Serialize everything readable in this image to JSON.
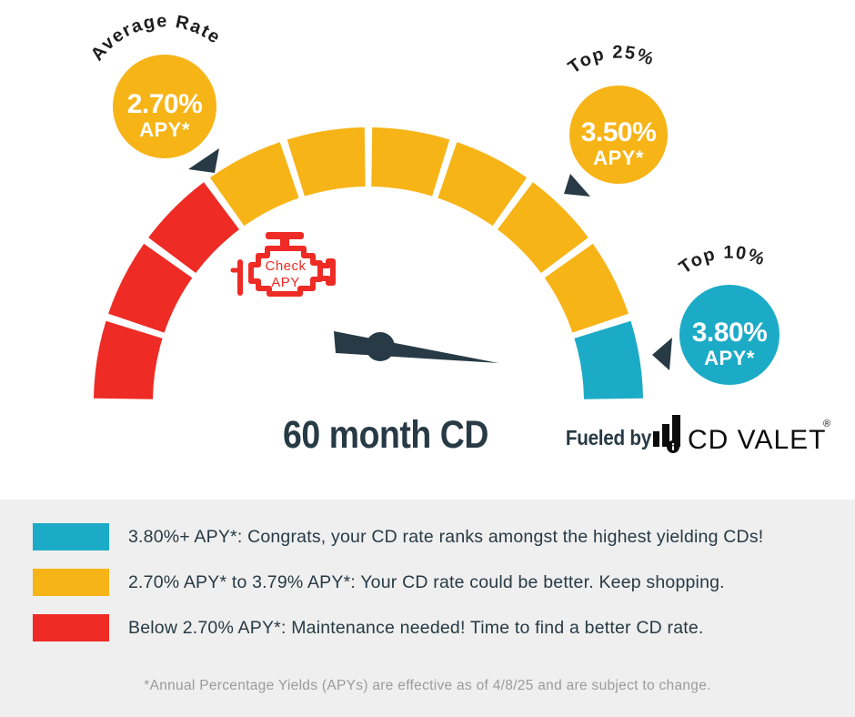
{
  "colors": {
    "red": "#EE2B25",
    "yellow": "#F7B417",
    "teal": "#1CABC6",
    "dark": "#273A45",
    "label_dark": "#1D1D1D",
    "logo_black": "#0C0C0C",
    "panel_bg": "#EFEFEF",
    "muted": "#9B9B9B",
    "white": "#FFFFFF"
  },
  "gauge": {
    "title": "60 month CD",
    "markers": [
      {
        "label": "Average Rate",
        "value": "2.70%",
        "unit": "APY*",
        "color": "yellow"
      },
      {
        "label": "Top 25%",
        "value": "3.50%",
        "unit": "APY*",
        "color": "yellow"
      },
      {
        "label": "Top 10%",
        "value": "3.80%",
        "unit": "APY*",
        "color": "teal"
      }
    ],
    "engine_badge": {
      "line1": "Check",
      "line2": "APY"
    }
  },
  "branding": {
    "fueled_by": "Fueled by",
    "brand": "CD VALET",
    "registered": "®"
  },
  "legend": {
    "rows": [
      {
        "color": "teal",
        "text": "3.80%+ APY*: Congrats, your CD rate ranks amongst the highest yielding CDs!"
      },
      {
        "color": "yellow",
        "text": "2.70% APY* to 3.79% APY*: Your CD rate could be better. Keep shopping."
      },
      {
        "color": "red",
        "text": "Below 2.70% APY*: Maintenance needed! Time to find a better CD rate."
      }
    ]
  },
  "footnote": "*Annual Percentage Yields (APYs) are effective as of 4/8/25 and are subject to change.",
  "chart_data": {
    "type": "gauge",
    "title": "60 month CD",
    "angle_span_deg": 180,
    "segments": [
      "red",
      "red",
      "red",
      "yellow",
      "yellow",
      "yellow",
      "yellow",
      "yellow",
      "yellow",
      "teal"
    ],
    "thresholds": [
      {
        "label": "Average Rate",
        "apy": "2.70% APY*",
        "marker_color": "yellow"
      },
      {
        "label": "Top 25%",
        "apy": "3.50% APY*",
        "marker_color": "yellow"
      },
      {
        "label": "Top 10%",
        "apy": "3.80% APY*",
        "marker_color": "teal"
      }
    ],
    "bands": [
      {
        "range": "Below 2.70% APY*",
        "color": "red",
        "meaning": "Maintenance needed! Time to find a better CD rate."
      },
      {
        "range": "2.70% APY* to 3.79% APY*",
        "color": "yellow",
        "meaning": "Your CD rate could be better. Keep shopping."
      },
      {
        "range": "3.80%+ APY*",
        "color": "teal",
        "meaning": "Congrats, your CD rate ranks amongst the highest yielding CDs!"
      }
    ]
  }
}
